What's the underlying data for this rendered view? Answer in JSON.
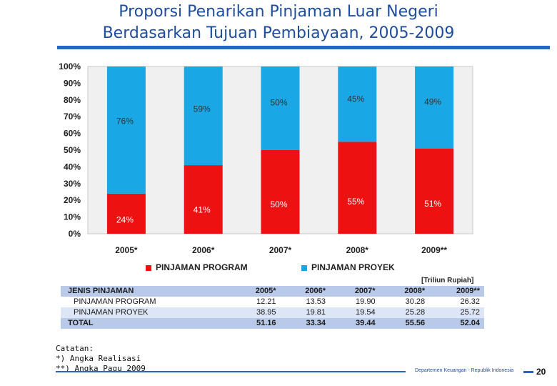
{
  "title": {
    "line1": "Proporsi Penarikan Pinjaman Luar Negeri",
    "line2": "Berdasarkan Tujuan Pembiayaan, 2005-2009"
  },
  "colors": {
    "program": "#ee1111",
    "proyek": "#1aa7e6",
    "title": "#1f4e9c",
    "accent": "#2b64c4"
  },
  "chart_data": {
    "type": "bar",
    "stacked": true,
    "percent": true,
    "categories": [
      "2005*",
      "2006*",
      "2007*",
      "2008*",
      "2009**"
    ],
    "series": [
      {
        "name": "PINJAMAN PROGRAM",
        "values": [
          24,
          41,
          50,
          55,
          51
        ],
        "labels": [
          "24%",
          "41%",
          "50%",
          "55%",
          "51%"
        ]
      },
      {
        "name": "PINJAMAN PROYEK",
        "values": [
          76,
          59,
          50,
          45,
          49
        ],
        "labels": [
          "76%",
          "59%",
          "50%",
          "45%",
          "49%"
        ]
      }
    ],
    "y_ticks": [
      "0%",
      "10%",
      "20%",
      "30%",
      "40%",
      "50%",
      "60%",
      "70%",
      "80%",
      "90%",
      "100%"
    ],
    "ylim": [
      0,
      100
    ],
    "legend_position": "bottom",
    "grid": false
  },
  "table": {
    "unit": "[Triliun Rupiah]",
    "header": [
      "JENIS PINJAMAN",
      "2005*",
      "2006*",
      "2007*",
      "2008*",
      "2009**"
    ],
    "rows": [
      [
        "PINJAMAN PROGRAM",
        "12.21",
        "13.53",
        "19.90",
        "30.28",
        "26.32"
      ],
      [
        "PINJAMAN PROYEK",
        "38.95",
        "19.81",
        "19.54",
        "25.28",
        "25.72"
      ]
    ],
    "total": [
      "TOTAL",
      "51.16",
      "33.34",
      "39.44",
      "55.56",
      "52.04"
    ]
  },
  "notes": [
    "Catatan:",
    "*) Angka Realisasi",
    "**) Angka Pagu 2009"
  ],
  "footer": {
    "text": "Departemen Keuangan - Republik Indonesia",
    "page": "20"
  }
}
